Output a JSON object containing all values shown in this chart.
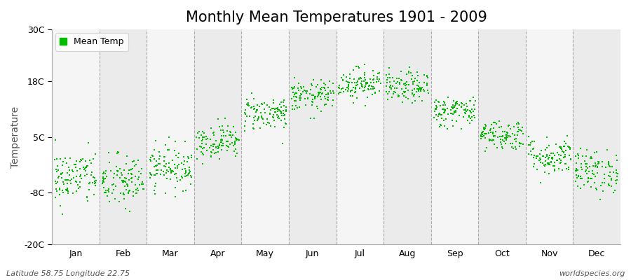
{
  "title": "Monthly Mean Temperatures 1901 - 2009",
  "ylabel": "Temperature",
  "subtitle_left": "Latitude 58.75 Longitude 22.75",
  "subtitle_right": "worldspecies.org",
  "legend_label": "Mean Temp",
  "dot_color": "#00bb00",
  "dot_size": 3,
  "bg_color": "#ffffff",
  "plot_bg_color": "#f5f5f5",
  "alt_band_color": "#ebebeb",
  "ytick_labels": [
    "-20C",
    "-8C",
    "5C",
    "18C",
    "30C"
  ],
  "ytick_values": [
    -20,
    -8,
    5,
    18,
    30
  ],
  "ylim": [
    -20,
    30
  ],
  "months": [
    "Jan",
    "Feb",
    "Mar",
    "Apr",
    "May",
    "Jun",
    "Jul",
    "Aug",
    "Sep",
    "Oct",
    "Nov",
    "Dec"
  ],
  "monthly_means": [
    -4.5,
    -5.5,
    -2.0,
    4.0,
    10.5,
    14.5,
    17.5,
    16.5,
    11.0,
    5.5,
    0.5,
    -3.0
  ],
  "monthly_stds": [
    3.2,
    3.2,
    2.5,
    2.0,
    2.0,
    1.8,
    1.8,
    1.8,
    1.8,
    1.8,
    2.2,
    2.5
  ],
  "n_years": 109,
  "dashed_line_color": "#aaaaaa",
  "title_fontsize": 15,
  "axis_label_fontsize": 10,
  "tick_fontsize": 9,
  "annotation_fontsize": 8
}
